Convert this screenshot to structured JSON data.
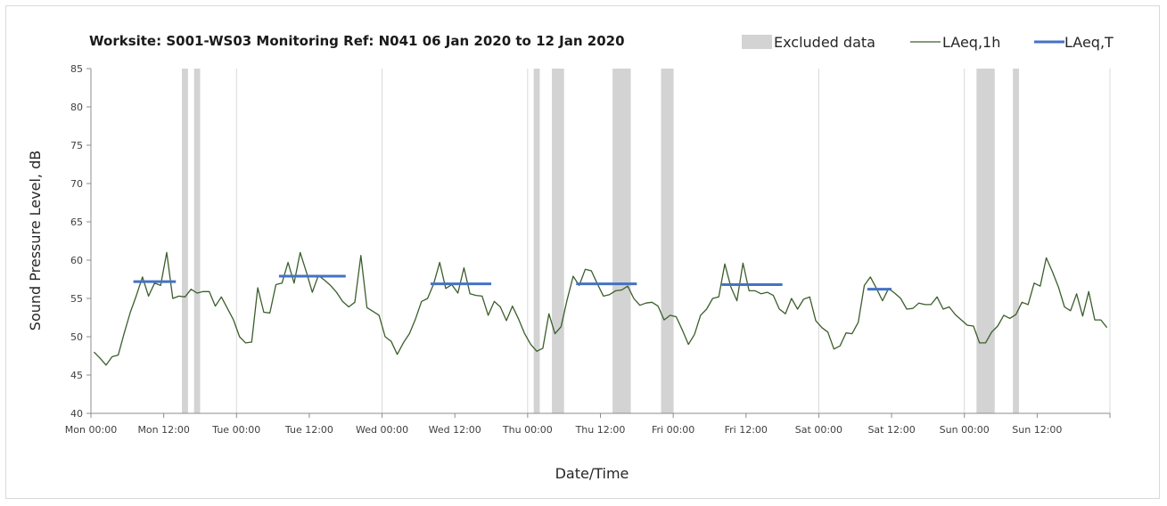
{
  "chart_data": {
    "type": "line",
    "title": "Worksite: S001-WS03   Monitoring Ref: N041     06 Jan 2020 to 12 Jan 2020",
    "xlabel": "Date/Time",
    "ylabel": "Sound Pressure Level, dB",
    "ylim": [
      40,
      85
    ],
    "yticks": [
      40,
      45,
      50,
      55,
      60,
      65,
      70,
      75,
      80,
      85
    ],
    "xlim_hours": [
      0,
      168
    ],
    "xticks": [
      {
        "hour": 0,
        "label": "Mon 00:00"
      },
      {
        "hour": 12,
        "label": "Mon 12:00"
      },
      {
        "hour": 24,
        "label": "Tue 00:00"
      },
      {
        "hour": 36,
        "label": "Tue 12:00"
      },
      {
        "hour": 48,
        "label": "Wed 00:00"
      },
      {
        "hour": 60,
        "label": "Wed 12:00"
      },
      {
        "hour": 72,
        "label": "Thu 00:00"
      },
      {
        "hour": 84,
        "label": "Thu 12:00"
      },
      {
        "hour": 96,
        "label": "Fri 00:00"
      },
      {
        "hour": 108,
        "label": "Fri 12:00"
      },
      {
        "hour": 120,
        "label": "Sat 00:00"
      },
      {
        "hour": 132,
        "label": "Sat 12:00"
      },
      {
        "hour": 144,
        "label": "Sun 00:00"
      },
      {
        "hour": 156,
        "label": "Sun 12:00"
      }
    ],
    "vertical_grid": "every 24 hours",
    "legend_position": "top-right",
    "legend": [
      {
        "key": "excluded",
        "label": "Excluded data",
        "color": "#d3d3d3"
      },
      {
        "key": "laeq1h",
        "label": "LAeq,1h",
        "color": "#3b5e2b"
      },
      {
        "key": "laeqT",
        "label": "LAeq,T",
        "color": "#4472c4"
      }
    ],
    "excluded_ranges_hours": [
      [
        15,
        16
      ],
      [
        17,
        18
      ],
      [
        73,
        74
      ],
      [
        76,
        78
      ],
      [
        86,
        89
      ],
      [
        94,
        96
      ],
      [
        146,
        149
      ],
      [
        152,
        153
      ]
    ],
    "laeq_1h": [
      48.0,
      47.2,
      46.3,
      47.4,
      47.6,
      50.5,
      53.2,
      55.4,
      57.8,
      55.3,
      57.0,
      56.7,
      61.0,
      55.0,
      55.3,
      55.2,
      56.2,
      55.7,
      55.9,
      55.9,
      54.0,
      55.2,
      53.7,
      52.2,
      50.0,
      49.2,
      49.3,
      56.4,
      53.2,
      53.1,
      56.8,
      57.0,
      59.7,
      57.0,
      61.0,
      58.5,
      55.8,
      58.0,
      57.4,
      56.7,
      55.8,
      54.6,
      53.9,
      54.5,
      60.6,
      53.8,
      53.3,
      52.8,
      50.0,
      49.4,
      47.7,
      49.2,
      50.4,
      52.3,
      54.6,
      55.0,
      56.9,
      59.7,
      56.3,
      56.8,
      55.7,
      59.0,
      55.6,
      55.4,
      55.3,
      52.8,
      54.6,
      53.9,
      52.1,
      54.0,
      52.3,
      50.4,
      49.0,
      48.1,
      48.5,
      53.0,
      50.4,
      51.3,
      54.8,
      57.9,
      56.7,
      58.8,
      58.6,
      56.9,
      55.3,
      55.5,
      56.0,
      56.1,
      56.6,
      55.0,
      54.1,
      54.4,
      54.5,
      54.0,
      52.2,
      52.8,
      52.6,
      50.9,
      49.0,
      50.3,
      52.8,
      53.6,
      55.0,
      55.2,
      59.5,
      56.5,
      54.7,
      59.6,
      56.0,
      56.0,
      55.6,
      55.8,
      55.4,
      53.6,
      53.0,
      55.0,
      53.6,
      54.9,
      55.2,
      52.1,
      51.2,
      50.6,
      48.4,
      48.8,
      50.5,
      50.4,
      51.9,
      56.7,
      57.8,
      56.3,
      54.7,
      56.3,
      55.7,
      55.0,
      53.6,
      53.7,
      54.4,
      54.2,
      54.2,
      55.2,
      53.6,
      53.9,
      52.9,
      52.2,
      51.5,
      51.4,
      49.2,
      49.2,
      50.6,
      51.4,
      52.8,
      52.4,
      52.9,
      54.5,
      54.2,
      57.0,
      56.6,
      60.3,
      58.5,
      56.5,
      53.9,
      53.4,
      55.6,
      52.7,
      55.9,
      52.2,
      52.2,
      51.2
    ],
    "laeq_T": [
      {
        "start_hour": 7,
        "end_hour": 14,
        "value": 57.2
      },
      {
        "start_hour": 31,
        "end_hour": 42,
        "value": 57.9
      },
      {
        "start_hour": 56,
        "end_hour": 66,
        "value": 56.9
      },
      {
        "start_hour": 80,
        "end_hour": 90,
        "value": 56.9
      },
      {
        "start_hour": 104,
        "end_hour": 114,
        "value": 56.8
      },
      {
        "start_hour": 128,
        "end_hour": 132,
        "value": 56.2
      }
    ]
  }
}
